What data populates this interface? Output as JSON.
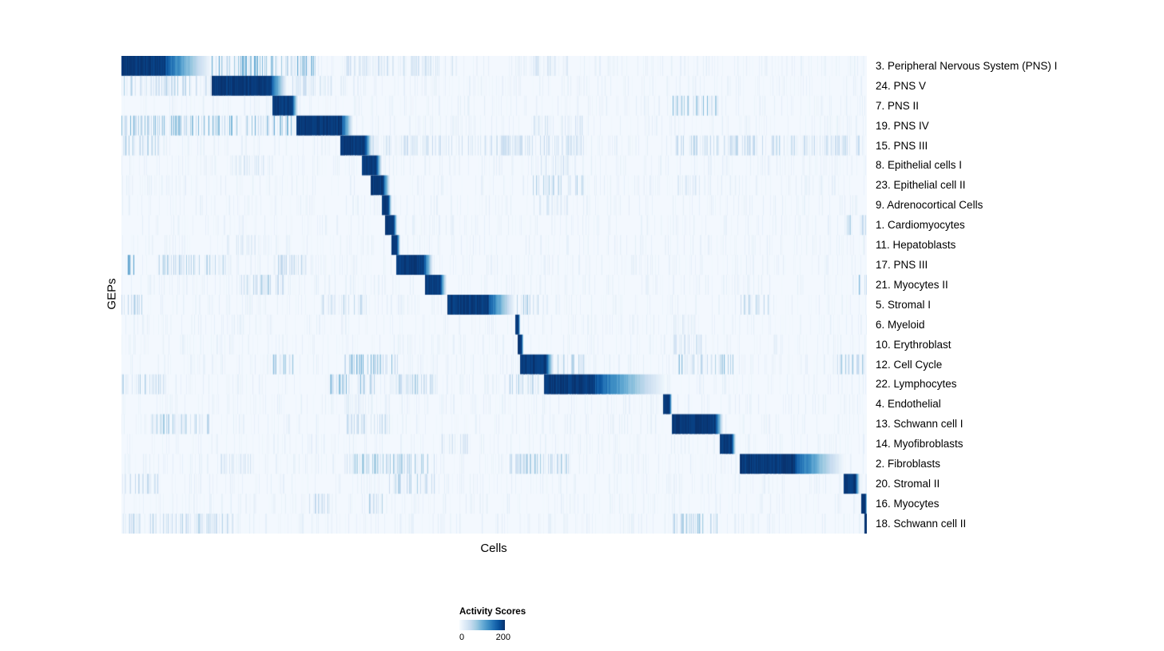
{
  "chart_data": {
    "type": "heatmap",
    "title": "",
    "xlabel": "Cells",
    "ylabel": "GEPs",
    "colormap": "Blues",
    "colormap_stops": [
      "#f7fbff",
      "#deebf7",
      "#c6dbef",
      "#9ecae1",
      "#6baed6",
      "#4292c6",
      "#2171b5",
      "#08519c",
      "#08306b"
    ],
    "value_range": [
      0,
      200
    ],
    "legend": {
      "title": "Activity Scores",
      "min": 0,
      "max": 200,
      "min_label": "0",
      "max_label": "200"
    },
    "x_axis_note": "individual cells ordered by assigned GEP; block = [start,end] fraction of x-axis with max activity, fade = decay length fraction, noise = [start,end,strength] background activity regions",
    "rows": [
      {
        "label": "3. Peripheral Nervous System (PNS) I",
        "block": [
          0.0,
          0.059
        ],
        "fade": 0.062,
        "noise": [
          [
            0.12,
            0.26,
            0.5
          ],
          [
            0.3,
            0.45,
            0.2
          ],
          [
            0.55,
            0.6,
            0.15
          ]
        ]
      },
      {
        "label": "24. PNS V",
        "block": [
          0.121,
          0.2015
        ],
        "fade": 0.02,
        "noise": [
          [
            0.0,
            0.12,
            0.3
          ],
          [
            0.23,
            0.3,
            0.2
          ]
        ]
      },
      {
        "label": "7. PNS II",
        "block": [
          0.2026,
          0.2294
        ],
        "fade": 0.008,
        "noise": [
          [
            0.74,
            0.8,
            0.45
          ]
        ]
      },
      {
        "label": "19. PNS IV",
        "block": [
          0.2347,
          0.2958
        ],
        "fade": 0.015,
        "noise": [
          [
            0.0,
            0.23,
            0.45
          ],
          [
            0.55,
            0.62,
            0.2
          ]
        ]
      },
      {
        "label": "15. PNS III",
        "block": [
          0.2937,
          0.3269
        ],
        "fade": 0.01,
        "noise": [
          [
            0.0,
            0.05,
            0.3
          ],
          [
            0.33,
            0.62,
            0.22
          ],
          [
            0.74,
            0.99,
            0.28
          ]
        ]
      },
      {
        "label": "8. Epithelial cells I",
        "block": [
          0.3226,
          0.3419
        ],
        "fade": 0.008,
        "noise": [
          [
            0.14,
            0.2,
            0.15
          ],
          [
            0.55,
            0.6,
            0.2
          ]
        ]
      },
      {
        "label": "23. Epithelial cell II",
        "block": [
          0.3344,
          0.3516
        ],
        "fade": 0.008,
        "noise": [
          [
            0.55,
            0.62,
            0.3
          ],
          [
            0.74,
            0.78,
            0.15
          ]
        ]
      },
      {
        "label": "9. Adrenocortical Cells",
        "block": [
          0.3494,
          0.358
        ],
        "fade": 0.004,
        "noise": [
          [
            0.55,
            0.6,
            0.12
          ]
        ]
      },
      {
        "label": "1. Cardiomyocytes",
        "block": [
          0.3537,
          0.3655
        ],
        "fade": 0.004,
        "noise": [
          [
            0.97,
            1.0,
            0.3
          ]
        ]
      },
      {
        "label": "11. Hepatoblasts",
        "block": [
          0.3623,
          0.3698
        ],
        "fade": 0.004,
        "noise": [
          [
            0.14,
            0.18,
            0.12
          ]
        ]
      },
      {
        "label": "17. PNS III",
        "block": [
          0.3687,
          0.4062
        ],
        "fade": 0.012,
        "noise": [
          [
            0.0,
            0.02,
            0.6
          ],
          [
            0.05,
            0.15,
            0.3
          ],
          [
            0.21,
            0.25,
            0.25
          ]
        ]
      },
      {
        "label": "21. Myocytes II",
        "block": [
          0.4073,
          0.4277
        ],
        "fade": 0.008,
        "noise": [
          [
            0.16,
            0.22,
            0.3
          ],
          [
            0.99,
            1.0,
            0.5
          ]
        ]
      },
      {
        "label": "5. Stromal I",
        "block": [
          0.4373,
          0.493
        ],
        "fade": 0.035,
        "noise": [
          [
            0.0,
            0.03,
            0.3
          ],
          [
            0.27,
            0.33,
            0.25
          ],
          [
            0.52,
            0.56,
            0.3
          ],
          [
            0.83,
            0.87,
            0.3
          ]
        ]
      },
      {
        "label": "6. Myeloid",
        "block": [
          0.5284,
          0.5327
        ],
        "fade": 0.002,
        "noise": [
          [
            0.74,
            0.77,
            0.12
          ]
        ]
      },
      {
        "label": "10. Erythroblast",
        "block": [
          0.5316,
          0.537
        ],
        "fade": 0.002,
        "noise": [
          [
            0.74,
            0.78,
            0.2
          ]
        ]
      },
      {
        "label": "12. Cell Cycle",
        "block": [
          0.5348,
          0.5702
        ],
        "fade": 0.01,
        "noise": [
          [
            0.2,
            0.23,
            0.4
          ],
          [
            0.29,
            0.37,
            0.45
          ],
          [
            0.55,
            0.62,
            0.3
          ],
          [
            0.74,
            0.82,
            0.45
          ],
          [
            0.96,
            1.0,
            0.35
          ]
        ]
      },
      {
        "label": "22. Lymphocytes",
        "block": [
          0.567,
          0.6356
        ],
        "fade": 0.096,
        "noise": [
          [
            0.0,
            0.06,
            0.3
          ],
          [
            0.28,
            0.34,
            0.45
          ],
          [
            0.36,
            0.42,
            0.3
          ],
          [
            0.52,
            0.56,
            0.3
          ]
        ]
      },
      {
        "label": "4. Endothelial",
        "block": [
          0.7267,
          0.7353
        ],
        "fade": 0.003,
        "noise": [
          [
            0.3,
            0.33,
            0.12
          ]
        ]
      },
      {
        "label": "13. Schwann cell I",
        "block": [
          0.7385,
          0.7974
        ],
        "fade": 0.01,
        "noise": [
          [
            0.04,
            0.12,
            0.35
          ],
          [
            0.3,
            0.36,
            0.25
          ]
        ]
      },
      {
        "label": "14. Myofibroblasts",
        "block": [
          0.8028,
          0.8189
        ],
        "fade": 0.005,
        "noise": [
          [
            0.43,
            0.47,
            0.2
          ]
        ]
      },
      {
        "label": "2. Fibroblasts",
        "block": [
          0.8296,
          0.9035
        ],
        "fade": 0.068,
        "noise": [
          [
            0.13,
            0.18,
            0.2
          ],
          [
            0.3,
            0.42,
            0.35
          ],
          [
            0.52,
            0.6,
            0.35
          ]
        ]
      },
      {
        "label": "20. Stromal II",
        "block": [
          0.9689,
          0.985
        ],
        "fade": 0.005,
        "noise": [
          [
            0.0,
            0.05,
            0.25
          ],
          [
            0.36,
            0.42,
            0.3
          ]
        ]
      },
      {
        "label": "16. Myocytes",
        "block": [
          0.9925,
          0.9979
        ],
        "fade": 0.002,
        "noise": [
          [
            0.25,
            0.28,
            0.3
          ],
          [
            0.33,
            0.35,
            0.3
          ]
        ]
      },
      {
        "label": "18. Schwann cell II",
        "block": [
          0.9968,
          1.0
        ],
        "fade": 0.0,
        "noise": [
          [
            0.0,
            0.15,
            0.3
          ],
          [
            0.74,
            0.8,
            0.4
          ]
        ]
      }
    ]
  }
}
